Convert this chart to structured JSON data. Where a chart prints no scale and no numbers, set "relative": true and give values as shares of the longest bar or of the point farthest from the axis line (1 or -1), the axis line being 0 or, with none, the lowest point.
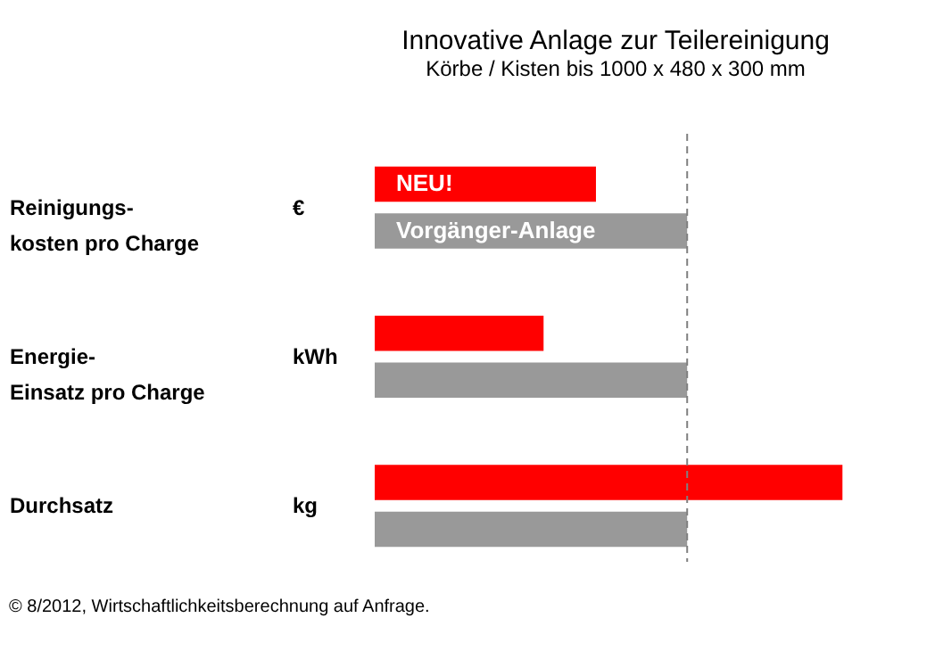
{
  "chart_data": {
    "type": "bar",
    "orientation": "horizontal",
    "relative": true,
    "title": "Innovative Anlage zur Teilereinigung",
    "subtitle": "Körbe / Kisten bis 1000 x 480 x 300 mm",
    "categories": [
      "Reinigungs-\nkosten pro Charge",
      "Energie-\nEinsatz pro Charge",
      "Durchsatz"
    ],
    "series": [
      {
        "name": "NEU!",
        "color": "#ff0000",
        "values": [
          0.473,
          0.361,
          1
        ]
      },
      {
        "name": "Vorgänger-Anlage",
        "color": "#999999",
        "values": [
          0.668,
          0.668,
          0.668
        ]
      }
    ],
    "ref_lines": [
      {
        "axis": "x",
        "value": 0.668,
        "color": "#808080",
        "line_style": "dashed"
      }
    ],
    "annotations": [
      "€",
      "kWh",
      "kg",
      "© 8/2012, Wirtschaftlichkeitsberechnung auf Anfrage."
    ],
    "legend": false
  }
}
